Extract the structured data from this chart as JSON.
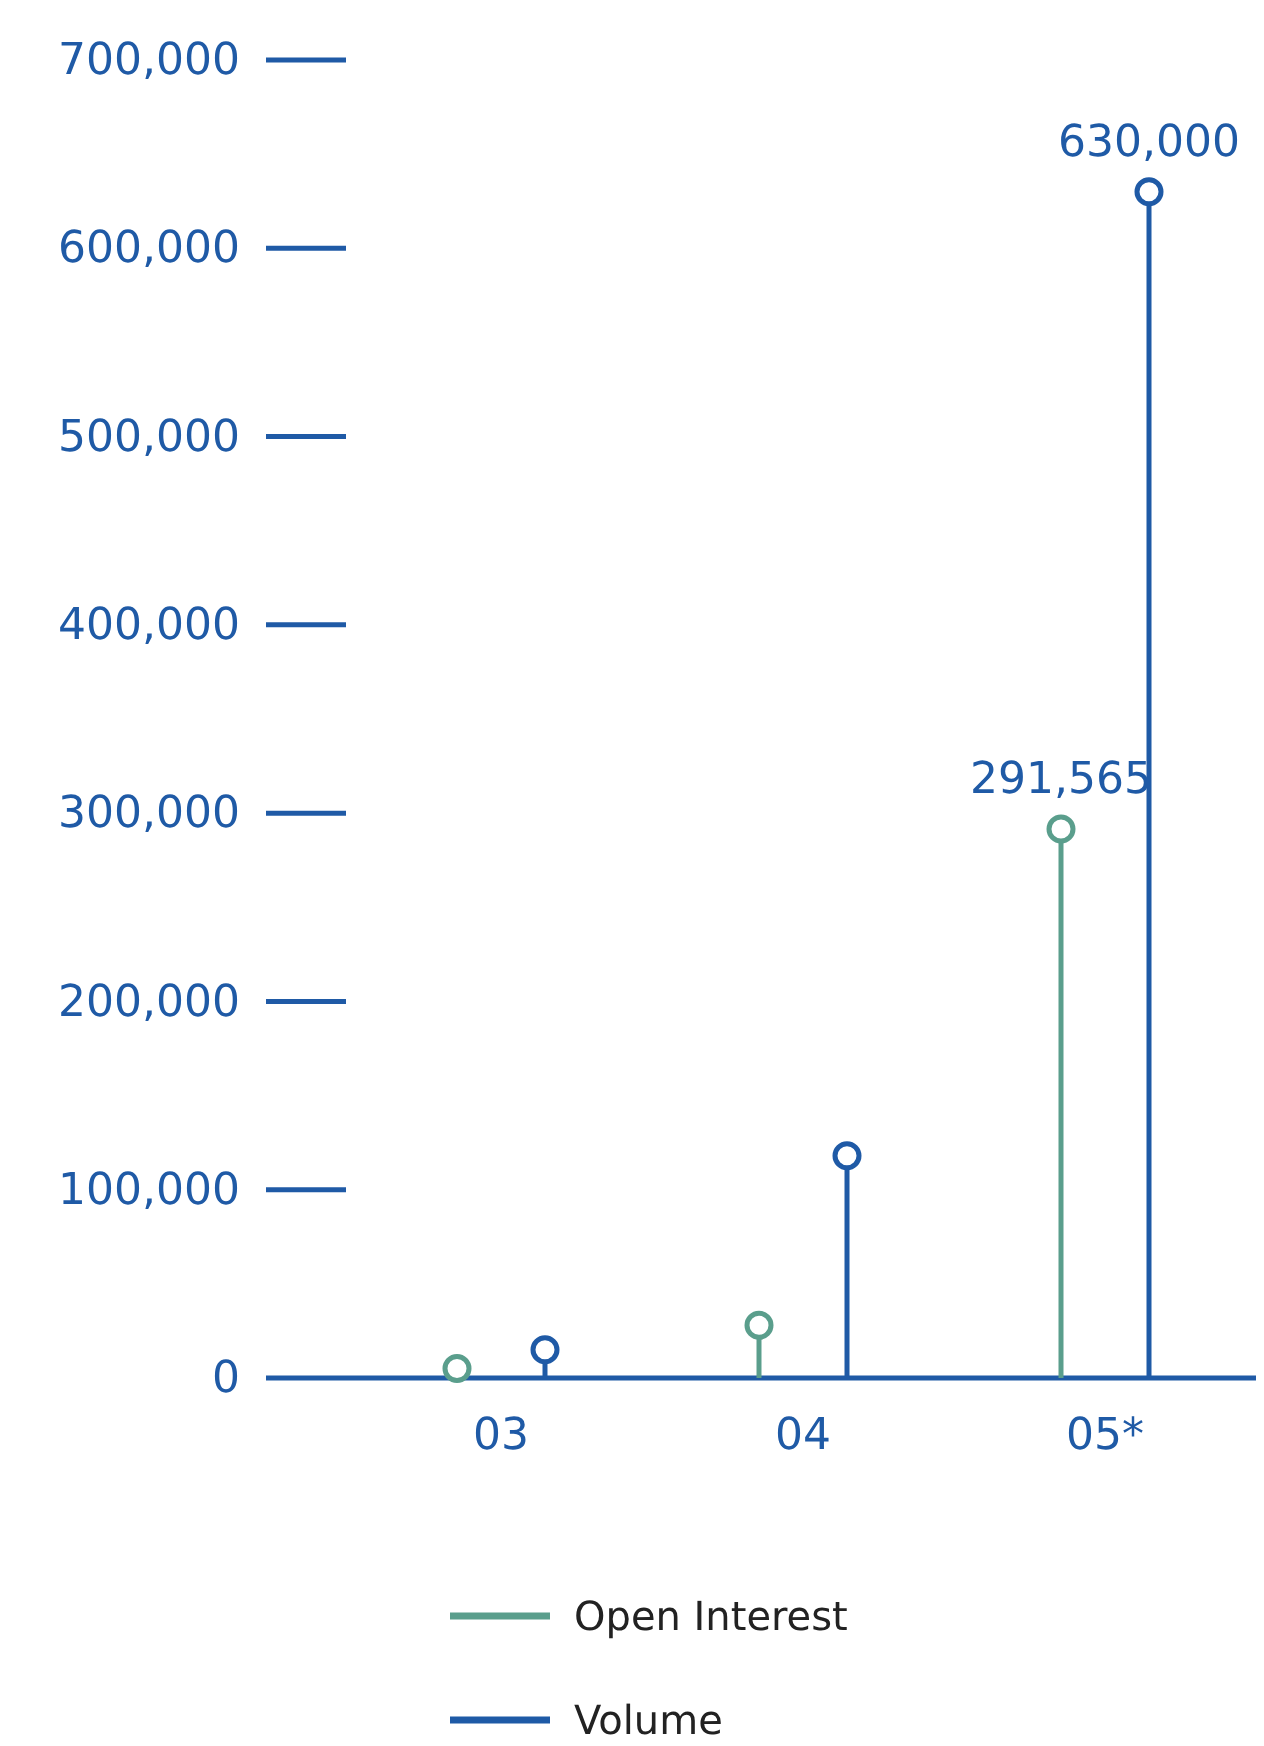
{
  "chart_data": {
    "type": "lollipop",
    "categories": [
      "03",
      "04",
      "05*"
    ],
    "series": [
      {
        "name": "Open Interest",
        "color": "#5a9e8c",
        "values": [
          5000,
          28000,
          291565
        ],
        "value_labels": [
          null,
          null,
          "291,565"
        ]
      },
      {
        "name": "Volume",
        "color": "#1f5aa6",
        "values": [
          15000,
          118000,
          630000
        ],
        "value_labels": [
          null,
          null,
          "630,000"
        ]
      }
    ],
    "ylim": [
      0,
      700000
    ],
    "yticks": [
      0,
      {
        "value": 100000,
        "label": "100,000"
      },
      {
        "value": 200000,
        "label": "200,000"
      },
      {
        "value": 300000,
        "label": "300,000"
      },
      {
        "value": 400000,
        "label": "400,000"
      },
      {
        "value": 500000,
        "label": "500,000"
      },
      {
        "value": 600000,
        "label": "600,000"
      },
      {
        "value": 700000,
        "label": "700,000"
      }
    ],
    "legend": "bottom",
    "marker": "circle",
    "grid": false
  }
}
